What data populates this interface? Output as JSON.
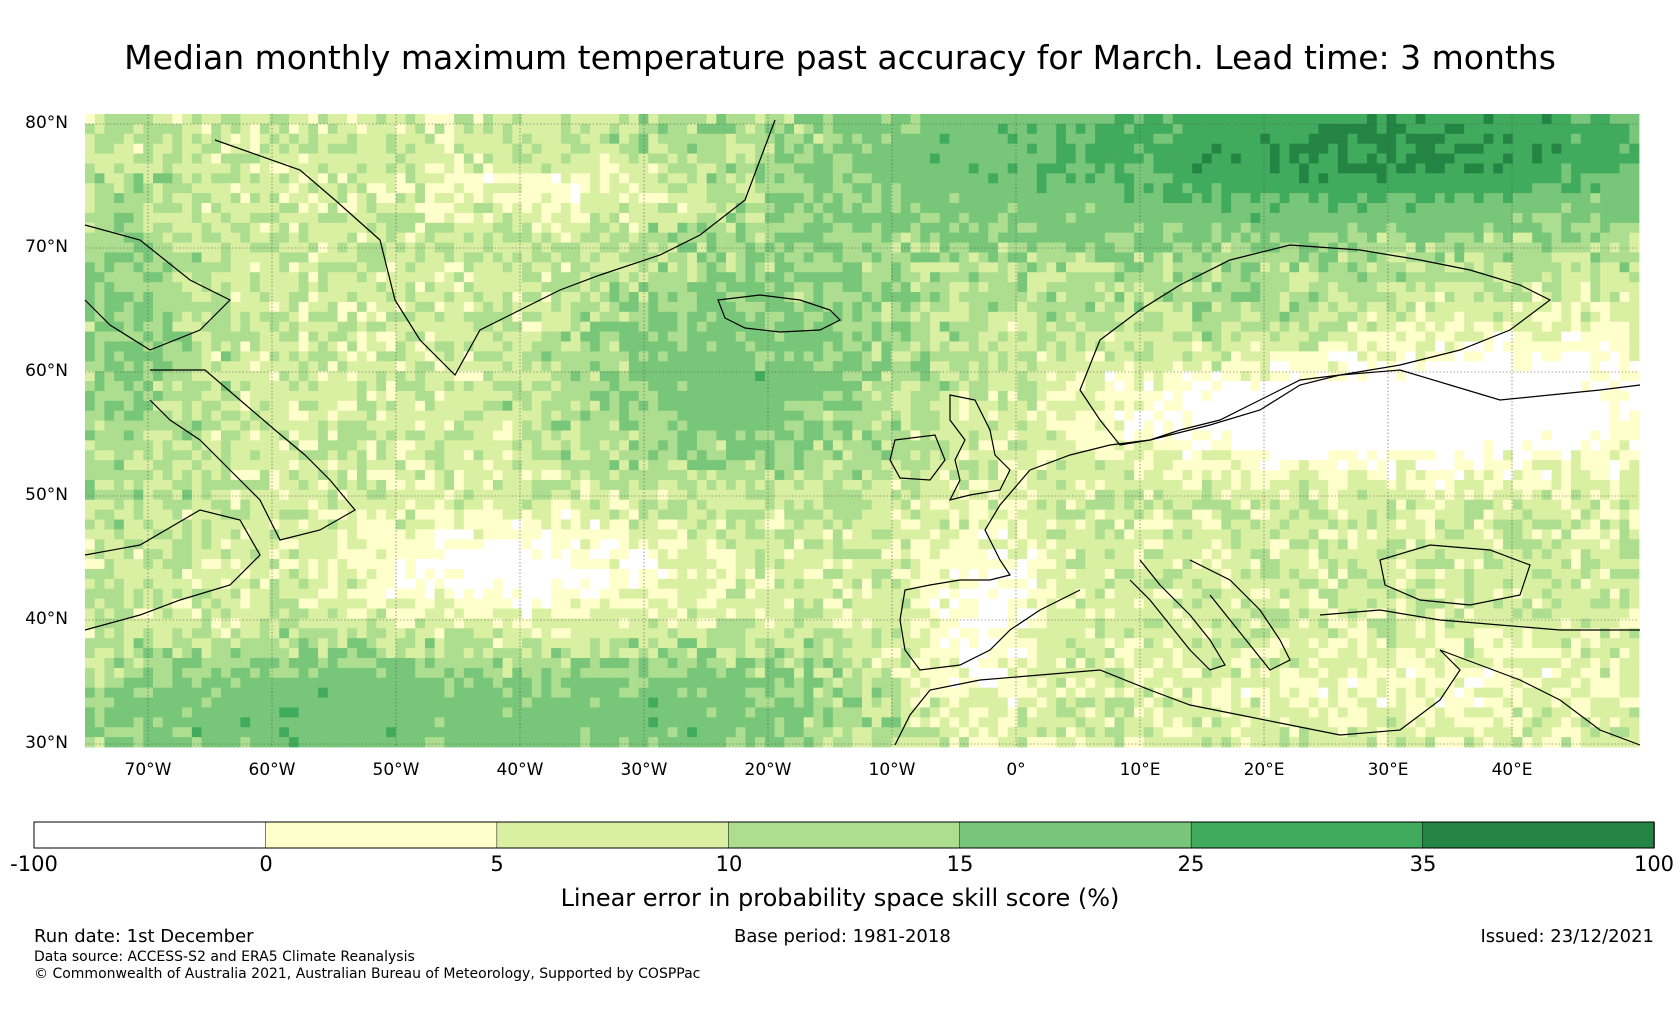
{
  "title": "Median monthly maximum temperature past accuracy for March. Lead time: 3 months",
  "map": {
    "latitude_labels": [
      "80°N",
      "70°N",
      "60°N",
      "50°N",
      "40°N",
      "30°N"
    ],
    "longitude_labels": [
      "70°W",
      "60°W",
      "50°W",
      "40°W",
      "30°W",
      "20°W",
      "10°W",
      "0°",
      "10°E",
      "20°E",
      "30°E",
      "40°E"
    ]
  },
  "colorbar": {
    "ticks": [
      "-100",
      "0",
      "5",
      "10",
      "15",
      "25",
      "35",
      "100"
    ],
    "bins": [
      {
        "range": "-100 to 0",
        "color": "#ffffff"
      },
      {
        "range": "0 to 5",
        "color": "#ffffcc"
      },
      {
        "range": "5 to 10",
        "color": "#d9f0a3"
      },
      {
        "range": "10 to 15",
        "color": "#addd8e"
      },
      {
        "range": "15 to 25",
        "color": "#78c679"
      },
      {
        "range": "25 to 35",
        "color": "#41ab5d"
      },
      {
        "range": "35 to 100",
        "color": "#238443"
      }
    ],
    "label": "Linear error in probability space skill score (%)"
  },
  "footer": {
    "run_date": "Run date: 1st December",
    "base_period": "Base period: 1981-2018",
    "issued": "Issued: 23/12/2021",
    "data_source": "Data source: ACCESS-S2 and ERA5 Climate Reanalysis",
    "copyright": "© Commonwealth of Australia 2021, Australian Bureau of Meteorology, Supported by COSPPac"
  }
}
